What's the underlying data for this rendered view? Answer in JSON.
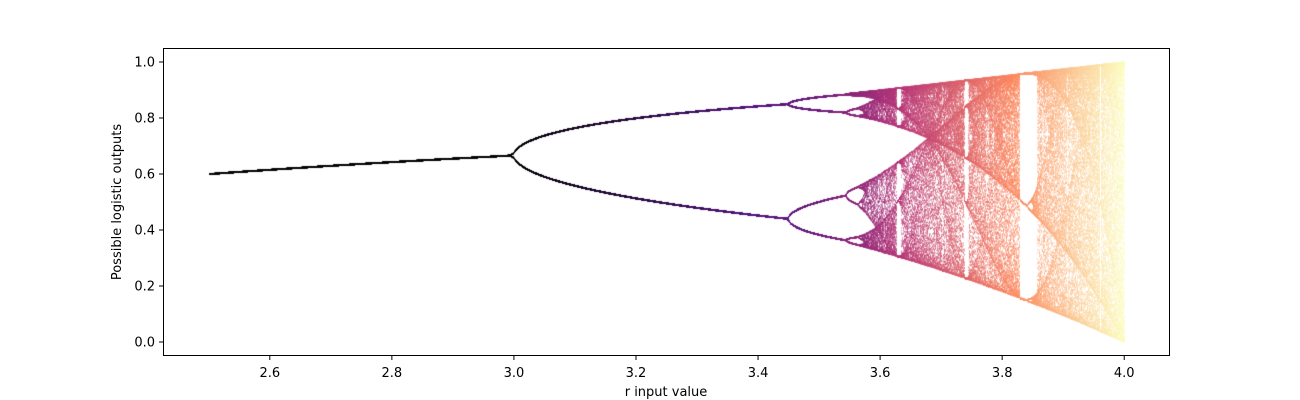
{
  "chart_data": {
    "type": "scatter",
    "title": "",
    "xlabel": "r input value",
    "ylabel": "Possible logistic outputs",
    "xlim": [
      2.425,
      4.075
    ],
    "ylim": [
      -0.05,
      1.05
    ],
    "x_ticks": [
      2.6,
      2.8,
      3.0,
      3.2,
      3.4,
      3.6,
      3.8,
      4.0
    ],
    "x_tick_labels": [
      "2.6",
      "2.8",
      "3.0",
      "3.2",
      "3.4",
      "3.6",
      "3.8",
      "4.0"
    ],
    "y_ticks": [
      0.0,
      0.2,
      0.4,
      0.6,
      0.8,
      1.0
    ],
    "y_tick_labels": [
      "0.0",
      "0.2",
      "0.4",
      "0.6",
      "0.8",
      "1.0"
    ],
    "grid": false,
    "legend": "none",
    "colormap": "magma",
    "r_range": [
      2.5,
      4.0
    ],
    "map": "x_next = r * x * (1 - x)",
    "x0": 0.5,
    "color_stops": [
      "#000004",
      "#51127c",
      "#b73779",
      "#fc8961",
      "#fcfdbf"
    ]
  }
}
